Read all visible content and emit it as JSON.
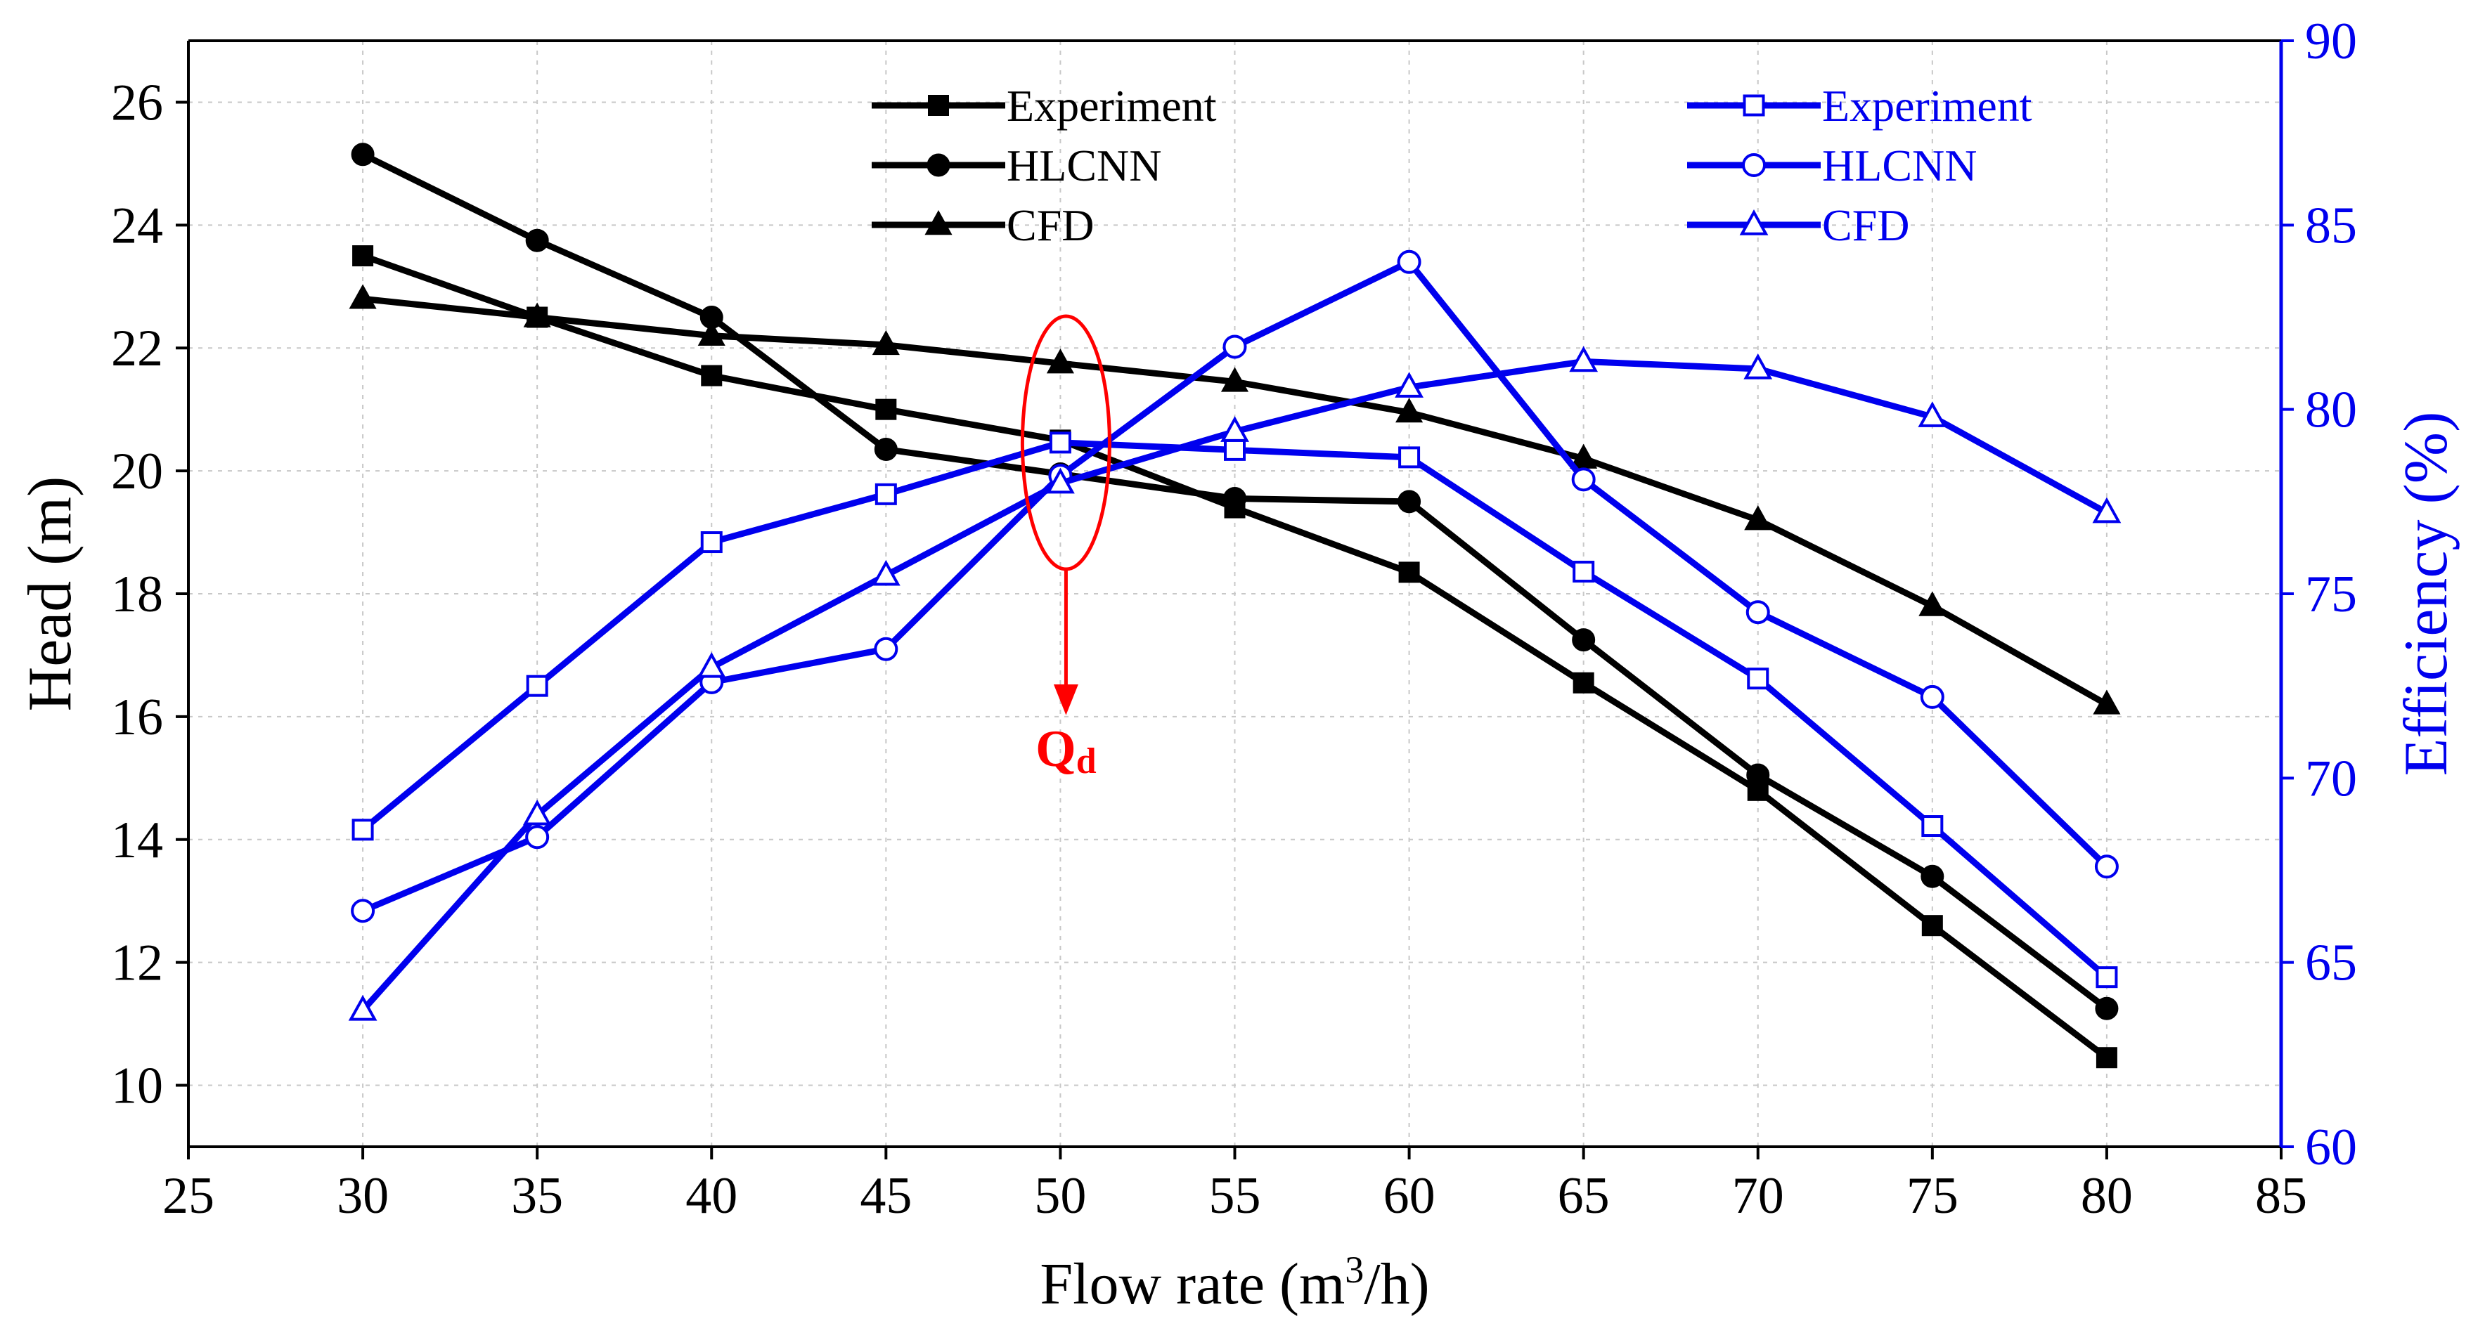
{
  "chart_data": {
    "type": "line",
    "title": "",
    "xlabel": "Flow rate (m",
    "xlabel_sup": "3",
    "xlabel_suffix": "/h)",
    "ylabel_left": "Head (m)",
    "ylabel_right": "Efficiency (%)",
    "xlim": [
      25,
      85
    ],
    "ylim_left": [
      9,
      27
    ],
    "ylim_right": [
      60,
      90
    ],
    "x_ticks": [
      "25",
      "30",
      "35",
      "40",
      "45",
      "50",
      "55",
      "60",
      "65",
      "70",
      "75",
      "80",
      "85"
    ],
    "y_left_ticks": [
      "10",
      "12",
      "14",
      "16",
      "18",
      "20",
      "22",
      "24",
      "26"
    ],
    "y_right_ticks": [
      "60",
      "65",
      "70",
      "75",
      "80",
      "85",
      "90"
    ],
    "grid": true,
    "x": [
      30,
      35,
      40,
      45,
      50,
      55,
      60,
      65,
      70,
      75,
      80
    ],
    "series_head": [
      {
        "name": "Experiment",
        "marker": "square",
        "color": "#000000",
        "values": [
          23.5,
          22.5,
          21.55,
          21.0,
          20.5,
          19.4,
          18.35,
          16.55,
          14.8,
          12.6,
          10.45
        ]
      },
      {
        "name": "HLCNN",
        "marker": "circle",
        "color": "#000000",
        "values": [
          25.15,
          23.75,
          22.5,
          20.35,
          19.95,
          19.55,
          19.5,
          17.25,
          15.05,
          13.4,
          11.25
        ]
      },
      {
        "name": "CFD",
        "marker": "triangle",
        "color": "#000000",
        "values": [
          22.8,
          22.5,
          22.2,
          22.05,
          21.75,
          21.45,
          20.95,
          20.2,
          19.2,
          17.8,
          16.2
        ]
      }
    ],
    "series_efficiency": [
      {
        "name": "Experiment",
        "marker": "square-open",
        "color": "#0000ee",
        "values": [
          68.6,
          72.5,
          76.4,
          77.7,
          79.1,
          78.9,
          78.7,
          75.6,
          72.7,
          68.7,
          64.6
        ]
      },
      {
        "name": "HLCNN",
        "marker": "circle-open",
        "color": "#0000ee",
        "values": [
          66.4,
          68.4,
          72.6,
          73.5,
          78.2,
          81.7,
          84.0,
          78.1,
          74.5,
          72.2,
          67.6
        ]
      },
      {
        "name": "CFD",
        "marker": "triangle-open",
        "color": "#0000ee",
        "values": [
          63.7,
          69.0,
          73.0,
          75.5,
          78.0,
          79.4,
          80.6,
          81.3,
          81.1,
          79.8,
          77.2
        ]
      }
    ],
    "legend_left": [
      "Experiment",
      "HLCNN",
      "CFD"
    ],
    "legend_right": [
      "Experiment",
      "HLCNN",
      "CFD"
    ],
    "annotation": {
      "text": "Q",
      "subscript": "d",
      "x": 50,
      "color": "#ff0000"
    },
    "colors": {
      "axis_left": "#000000",
      "axis_right": "#0000ee",
      "annotation": "#ff0000",
      "grid": "#c8c8c8"
    }
  }
}
